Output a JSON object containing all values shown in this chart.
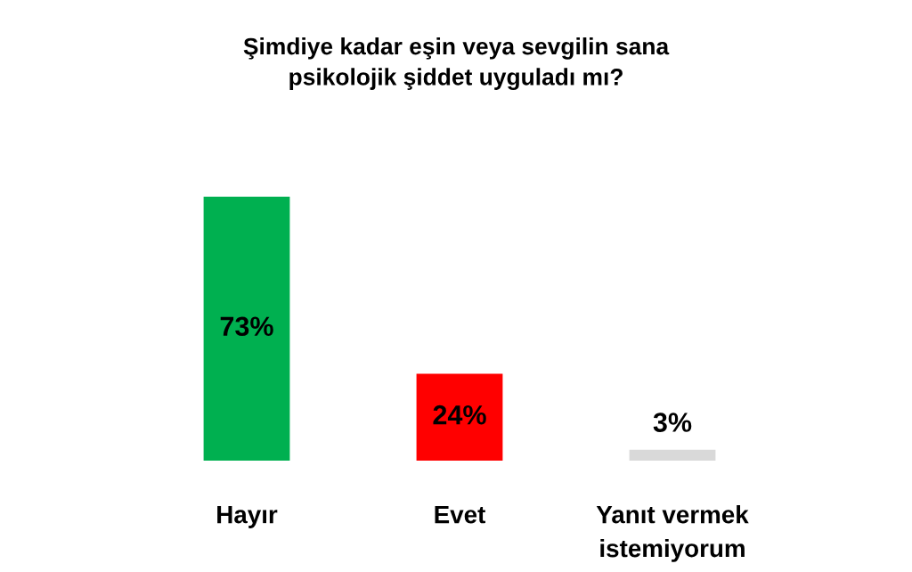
{
  "chart_data": {
    "type": "bar",
    "title": "Şimdiye kadar eşin veya sevgilin sana\npsikolojik şiddet uyguladı mı?",
    "categories": [
      "Hayır",
      "Evet",
      "Yanıt vermek\nistemiyorum"
    ],
    "values": [
      73,
      24,
      3
    ],
    "colors": [
      "#00b050",
      "#ff0000",
      "#d9d9d9"
    ],
    "value_labels": [
      "73%",
      "24%",
      "3%"
    ],
    "tick_labels": "x"
  }
}
